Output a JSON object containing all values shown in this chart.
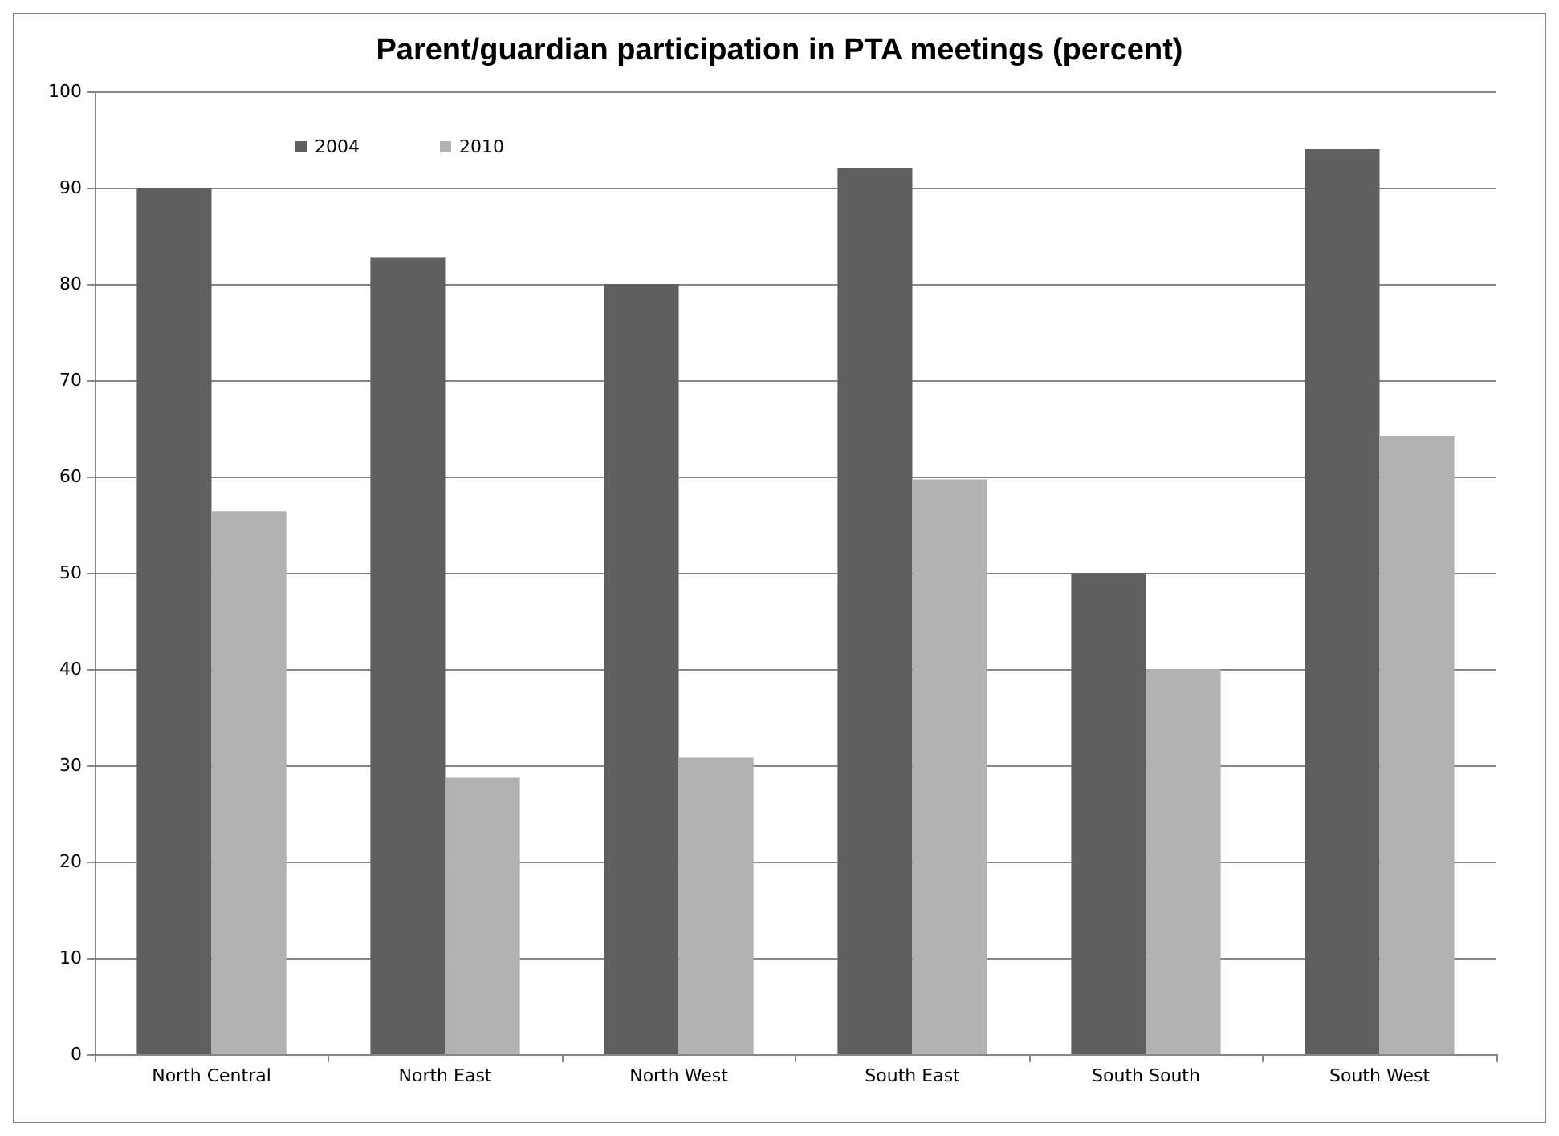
{
  "chart_data": {
    "type": "bar",
    "title": "Parent/guardian participation in PTA meetings (percent)",
    "categories": [
      "North Central",
      "North East",
      "North West",
      "South East",
      "South South",
      "South West"
    ],
    "series": [
      {
        "name": "2004",
        "color": "#5f5f5f",
        "values": [
          90,
          82.8,
          80,
          92,
          50,
          94
        ]
      },
      {
        "name": "2010",
        "color": "#b2b2b2",
        "values": [
          56.4,
          28.7,
          30.8,
          59.7,
          40,
          64.2
        ]
      }
    ],
    "ylim": [
      0,
      100
    ],
    "yticks": [
      0,
      10,
      20,
      30,
      40,
      50,
      60,
      70,
      80,
      90,
      100
    ],
    "grid": "y",
    "legend": "top left"
  }
}
